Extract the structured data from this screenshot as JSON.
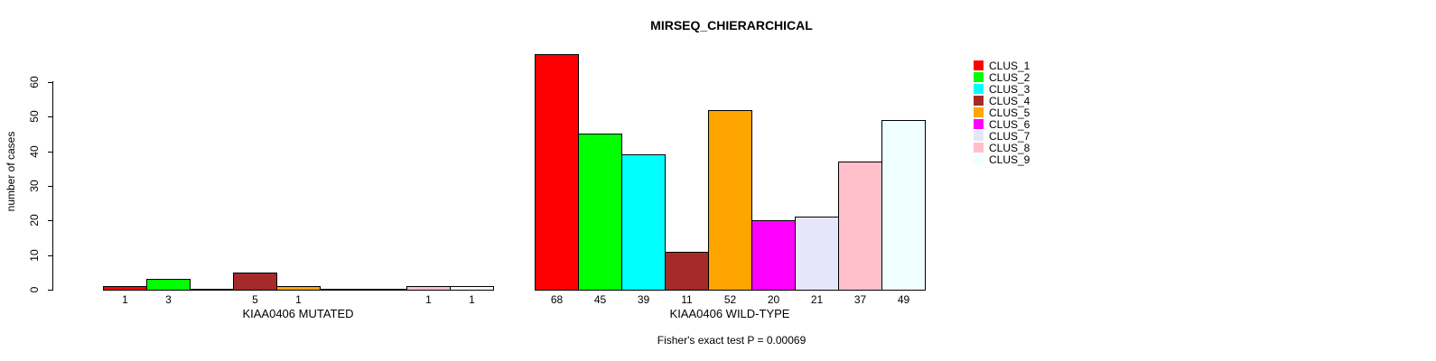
{
  "chart_data": {
    "type": "bar",
    "title": "MIRSEQ_CHIERARCHICAL",
    "ylabel": "number of cases",
    "ylim": [
      0,
      60
    ],
    "yticks": [
      0,
      10,
      20,
      30,
      40,
      50,
      60
    ],
    "grid": false,
    "legend_position": "right",
    "clusters": [
      {
        "label": "CLUS_1",
        "color": "#FF0000"
      },
      {
        "label": "CLUS_2",
        "color": "#00FF00"
      },
      {
        "label": "CLUS_3",
        "color": "#00FFFF"
      },
      {
        "label": "CLUS_4",
        "color": "#A52A2A"
      },
      {
        "label": "CLUS_5",
        "color": "#FFA500"
      },
      {
        "label": "CLUS_6",
        "color": "#FF00FF"
      },
      {
        "label": "CLUS_7",
        "color": "#E6E6FA"
      },
      {
        "label": "CLUS_8",
        "color": "#FFC0CB"
      },
      {
        "label": "CLUS_9",
        "color": "#F0FFFF"
      }
    ],
    "groups": [
      {
        "label": "KIAA0406 MUTATED",
        "values": [
          1,
          3,
          0,
          5,
          1,
          0,
          0,
          1,
          1
        ]
      },
      {
        "label": "KIAA0406 WILD-TYPE",
        "values": [
          68,
          45,
          39,
          11,
          52,
          20,
          21,
          37,
          49
        ]
      }
    ],
    "annotation": "Fisher's exact test P = 0.00069"
  },
  "colors": {
    "axis": "#000000",
    "background": "#FFFFFF",
    "text": "#000000"
  }
}
